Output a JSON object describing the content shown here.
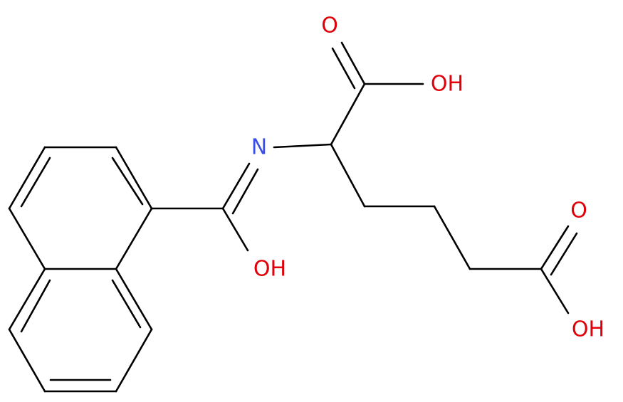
{
  "atoms": [
    "O",
    "OH",
    "N",
    "OH",
    "O",
    "OH"
  ]
}
